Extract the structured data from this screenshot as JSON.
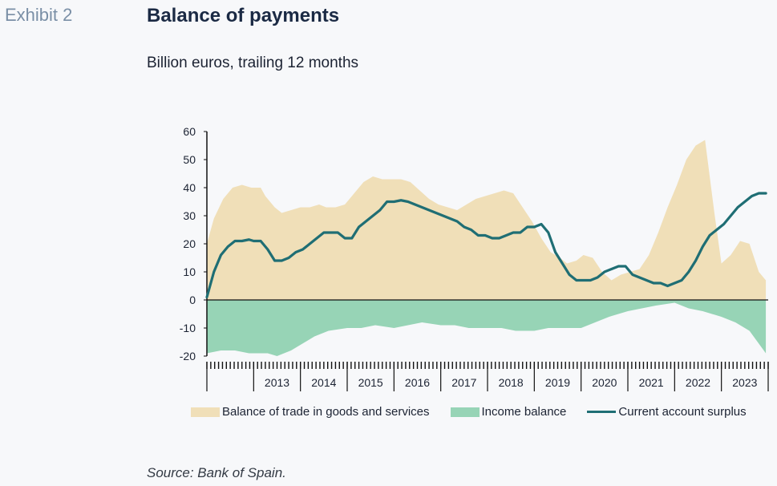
{
  "header": {
    "exhibit": "Exhibit 2",
    "title": "Balance of payments",
    "subtitle": "Billion euros, trailing 12 months"
  },
  "footer": {
    "source": "Source: Bank of Spain."
  },
  "colors": {
    "trade": "#f0dfb8",
    "income": "#97d4b6",
    "current": "#1f6e74"
  },
  "chart_data": {
    "type": "area",
    "ylim": [
      -20,
      60
    ],
    "yticks": [
      -20,
      -10,
      0,
      10,
      20,
      30,
      40,
      50,
      60
    ],
    "xlim": [
      2012,
      2024
    ],
    "year_labels": [
      "2013",
      "2014",
      "2015",
      "2016",
      "2017",
      "2018",
      "2019",
      "2020",
      "2021",
      "2022",
      "2023"
    ],
    "grid": false,
    "legend_position": "bottom",
    "series": [
      {
        "name": "Balance of trade in goods and services",
        "kind": "area",
        "x": [
          2012.0,
          2012.15,
          2012.35,
          2012.55,
          2012.75,
          2012.95,
          2013.15,
          2013.25,
          2013.45,
          2013.6,
          2013.8,
          2014.0,
          2014.2,
          2014.4,
          2014.55,
          2014.75,
          2014.95,
          2015.15,
          2015.35,
          2015.55,
          2015.75,
          2015.95,
          2016.15,
          2016.35,
          2016.55,
          2016.75,
          2016.95,
          2017.15,
          2017.35,
          2017.55,
          2017.75,
          2017.95,
          2018.15,
          2018.35,
          2018.55,
          2018.75,
          2018.95,
          2019.15,
          2019.35,
          2019.55,
          2019.7,
          2019.9,
          2020.05,
          2020.25,
          2020.45,
          2020.65,
          2020.85,
          2021.05,
          2021.25,
          2021.45,
          2021.65,
          2021.85,
          2022.05,
          2022.25,
          2022.45,
          2022.65,
          2022.85,
          2023.0,
          2023.2,
          2023.4,
          2023.6,
          2023.8,
          2023.95
        ],
        "values": [
          20,
          29,
          36,
          40,
          41,
          40,
          40,
          37,
          33,
          31,
          32,
          33,
          33,
          34,
          33,
          33,
          34,
          38,
          42,
          44,
          43,
          43,
          43,
          42,
          39,
          36,
          34,
          33,
          32,
          34,
          36,
          37,
          38,
          39,
          38,
          33,
          28,
          22,
          17,
          15,
          13,
          14,
          16,
          15,
          10,
          7,
          9,
          10,
          11,
          16,
          24,
          33,
          41,
          50,
          55,
          57,
          31,
          13,
          16,
          21,
          20,
          10,
          7
        ]
      },
      {
        "name": "Income balance",
        "kind": "area",
        "x": [
          2012.0,
          2012.3,
          2012.6,
          2012.9,
          2013.1,
          2013.3,
          2013.5,
          2013.8,
          2014.0,
          2014.3,
          2014.6,
          2015.0,
          2015.3,
          2015.6,
          2016.0,
          2016.3,
          2016.6,
          2017.0,
          2017.3,
          2017.6,
          2018.0,
          2018.3,
          2018.6,
          2019.0,
          2019.3,
          2019.6,
          2020.0,
          2020.3,
          2020.6,
          2021.0,
          2021.3,
          2021.6,
          2022.0,
          2022.3,
          2022.6,
          2023.0,
          2023.3,
          2023.6,
          2023.95
        ],
        "values": [
          -19,
          -18,
          -18,
          -19,
          -19,
          -19,
          -20,
          -18,
          -16,
          -13,
          -11,
          -10,
          -10,
          -9,
          -10,
          -9,
          -8,
          -9,
          -9,
          -10,
          -10,
          -10,
          -11,
          -11,
          -10,
          -10,
          -10,
          -8,
          -6,
          -4,
          -3,
          -2,
          -1,
          -3,
          -4,
          -6,
          -8,
          -11,
          -19
        ]
      },
      {
        "name": "Current account surplus",
        "kind": "line",
        "x": [
          2012.0,
          2012.15,
          2012.3,
          2012.45,
          2012.6,
          2012.75,
          2012.9,
          2013.0,
          2013.15,
          2013.3,
          2013.45,
          2013.6,
          2013.75,
          2013.9,
          2014.05,
          2014.2,
          2014.35,
          2014.5,
          2014.65,
          2014.8,
          2014.95,
          2015.1,
          2015.25,
          2015.4,
          2015.55,
          2015.7,
          2015.85,
          2016.0,
          2016.15,
          2016.3,
          2016.45,
          2016.6,
          2016.75,
          2016.9,
          2017.05,
          2017.2,
          2017.35,
          2017.5,
          2017.65,
          2017.8,
          2017.95,
          2018.1,
          2018.25,
          2018.4,
          2018.55,
          2018.7,
          2018.85,
          2019.0,
          2019.15,
          2019.3,
          2019.45,
          2019.6,
          2019.75,
          2019.9,
          2020.05,
          2020.2,
          2020.35,
          2020.5,
          2020.65,
          2020.8,
          2020.95,
          2021.1,
          2021.25,
          2021.4,
          2021.55,
          2021.7,
          2021.85,
          2022.0,
          2022.15,
          2022.3,
          2022.45,
          2022.6,
          2022.75,
          2022.9,
          2023.05,
          2023.2,
          2023.35,
          2023.5,
          2023.65,
          2023.8,
          2023.95
        ],
        "values": [
          1,
          10,
          16,
          19,
          21,
          21,
          21.5,
          21,
          21,
          18,
          14,
          14,
          15,
          17,
          18,
          20,
          22,
          24,
          24,
          24,
          22,
          22,
          26,
          28,
          30,
          32,
          35,
          35,
          35.5,
          35,
          34,
          33,
          32,
          31,
          30,
          29,
          28,
          26,
          25,
          23,
          23,
          22,
          22,
          23,
          24,
          24,
          26,
          26,
          27,
          24,
          17,
          13,
          9,
          7,
          7,
          7,
          8,
          10,
          11,
          12,
          12,
          9,
          8,
          7,
          6,
          6,
          5,
          6,
          7,
          10,
          14,
          19,
          23,
          25,
          27,
          30,
          33,
          35,
          37,
          38,
          38
        ]
      }
    ]
  }
}
